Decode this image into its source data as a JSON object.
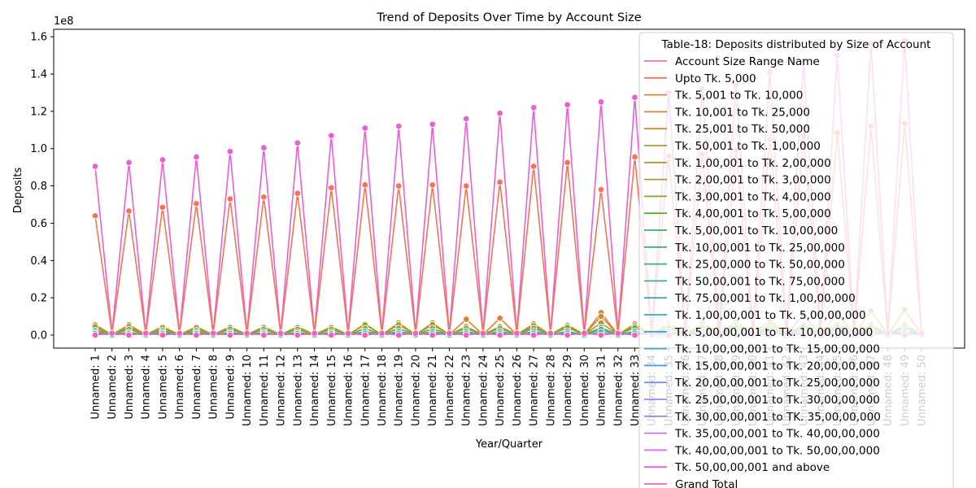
{
  "chart_data": {
    "type": "line",
    "title": "Trend of Deposits Over Time by Account Size",
    "xlabel": "Year/Quarter",
    "ylabel": "Deposits",
    "y_offset_label": "1e8",
    "ylim": [
      -0.07,
      1.64
    ],
    "y_ticks": [
      0.0,
      0.2,
      0.4,
      0.6,
      0.8,
      1.0,
      1.2,
      1.4,
      1.6
    ],
    "y_tick_labels": [
      "0.0",
      "0.2",
      "0.4",
      "0.6",
      "0.8",
      "1.0",
      "1.2",
      "1.4",
      "1.6"
    ],
    "grid": false,
    "legend": {
      "title": "Table-18:  Deposits  distributed by Size of Account",
      "placement": "upper-right",
      "entries": [
        "Account Size Range Name",
        "Upto Tk. 5,000",
        "Tk. 5,001 to Tk. 10,000",
        "Tk. 10,001 to Tk. 25,000",
        "Tk. 25,001 to Tk. 50,000",
        "Tk. 50,001 to Tk. 1,00,000",
        "Tk. 1,00,001 to Tk. 2,00,000",
        "Tk. 2,00,001 to Tk. 3,00,000",
        "Tk. 3,00,001 to Tk. 4,00,000",
        "Tk. 4,00,001 to Tk. 5,00,000",
        "Tk. 5,00,001 to Tk. 10,00,000",
        "Tk. 10,00,001 to Tk. 25,00,000",
        "Tk. 25,00,000 to Tk. 50,00,000",
        "Tk. 50,00,001 to Tk. 75,00,000",
        "Tk. 75,00,001 to Tk. 1,00,00,000",
        "Tk. 1,00,00,001 to Tk. 5,00,00,000",
        "Tk. 5,00,00,001 to Tk. 10,00,00,000",
        "Tk. 10,00,00,001 to Tk. 15,00,00,000",
        "Tk. 15,00,00,001 to Tk. 20,00,00,000",
        "Tk. 20,00,00,001 to Tk. 25,00,00,000",
        "Tk. 25,00,00,001 to Tk. 30,00,00,000",
        "Tk. 30,00,00,001 to TK. 35,00,00,000",
        "Tk. 35,00,00,001 to Tk. 40,00,00,000",
        "Tk. 40,00,00,001 to Tk. 50,00,00,000",
        "Tk. 50,00,00,001 and above",
        "Grand Total"
      ],
      "colors": [
        "#f77189",
        "#f57453",
        "#e4802f",
        "#cf8a31",
        "#c09032",
        "#b19732",
        "#a29c31",
        "#95a031",
        "#81a831",
        "#50b131",
        "#36b25f",
        "#36b082",
        "#37ad9a",
        "#38aaa7",
        "#39a8b2",
        "#3ba5bc",
        "#3da2c8",
        "#3e9ed7",
        "#4599f4",
        "#6e91f4",
        "#8f89f4",
        "#a781f4",
        "#c173f4",
        "#da63f4",
        "#ef5dd6",
        "#f461b8"
      ]
    },
    "categories": [
      "Unnamed: 1",
      "Unnamed: 2",
      "Unnamed: 3",
      "Unnamed: 4",
      "Unnamed: 5",
      "Unnamed: 6",
      "Unnamed: 7",
      "Unnamed: 8",
      "Unnamed: 9",
      "Unnamed: 10",
      "Unnamed: 11",
      "Unnamed: 12",
      "Unnamed: 13",
      "Unnamed: 14",
      "Unnamed: 15",
      "Unnamed: 16",
      "Unnamed: 17",
      "Unnamed: 18",
      "Unnamed: 19",
      "Unnamed: 20",
      "Unnamed: 21",
      "Unnamed: 22",
      "Unnamed: 23",
      "Unnamed: 24",
      "Unnamed: 25",
      "Unnamed: 26",
      "Unnamed: 27",
      "Unnamed: 28",
      "Unnamed: 29",
      "Unnamed: 30",
      "Unnamed: 31",
      "Unnamed: 32",
      "Unnamed: 33",
      "Unnamed: 34",
      "Unnamed: 35",
      "Unnamed: 36",
      "Unnamed: 37",
      "Unnamed: 38",
      "Unnamed: 39",
      "Unnamed: 40",
      "Unnamed: 41",
      "Unnamed: 42",
      "Unnamed: 43",
      "Unnamed: 44",
      "Unnamed: 45",
      "Unnamed: 46",
      "Unnamed: 47",
      "Unnamed: 48",
      "Unnamed: 49",
      "Unnamed: 50"
    ],
    "series": [
      {
        "name": "Tk. 50,00,00,001 and above",
        "color": "#ef5dd6",
        "values": [
          0.905,
          0.01,
          0.925,
          0.01,
          0.94,
          0.01,
          0.955,
          0.01,
          0.985,
          0.01,
          1.005,
          0.01,
          1.03,
          0.01,
          1.07,
          0.01,
          1.11,
          0.01,
          1.12,
          0.01,
          1.13,
          0.01,
          1.16,
          0.01,
          1.19,
          0.01,
          1.22,
          0.01,
          1.235,
          0.01,
          1.25,
          0.01,
          1.275,
          0.01,
          1.3,
          0.01,
          1.32,
          0.01,
          1.34,
          0.01,
          1.41,
          0.01,
          1.47,
          0.01,
          1.5,
          0.01,
          1.56,
          0.01,
          1.58,
          0.01
        ]
      },
      {
        "name": "Upto Tk. 5,000",
        "color": "#f57453",
        "values": [
          0.64,
          0.005,
          0.665,
          0.005,
          0.685,
          0.005,
          0.705,
          0.005,
          0.73,
          0.005,
          0.74,
          0.005,
          0.76,
          0.005,
          0.79,
          0.005,
          0.805,
          0.005,
          0.8,
          0.005,
          0.805,
          0.005,
          0.8,
          0.005,
          0.82,
          0.005,
          0.905,
          0.005,
          0.925,
          0.005,
          0.78,
          0.005,
          0.955,
          0.005,
          0.96,
          0.005,
          0.97,
          0.005,
          0.99,
          0.005,
          1.05,
          0.005,
          1.07,
          0.005,
          1.085,
          0.005,
          1.12,
          0.005,
          1.135,
          0.005
        ]
      },
      {
        "name": "Tk. 5,001 to Tk. 10,000",
        "color": "#e4802f",
        "values": [
          0.035,
          0.002,
          0.035,
          0.002,
          0.03,
          0.002,
          0.03,
          0.002,
          0.03,
          0.002,
          0.03,
          0.002,
          0.03,
          0.002,
          0.03,
          0.002,
          0.035,
          0.002,
          0.035,
          0.002,
          0.035,
          0.002,
          0.085,
          0.002,
          0.09,
          0.002,
          0.04,
          0.002,
          0.04,
          0.002,
          0.12,
          0.002,
          0.04,
          0.002,
          0.04,
          0.002,
          0.04,
          0.002,
          0.04,
          0.002,
          0.04,
          0.002,
          0.04,
          0.002,
          0.04,
          0.002,
          0.04,
          0.002,
          0.04,
          0.002
        ]
      },
      {
        "name": "Tk. 10,001 to Tk. 25,000",
        "color": "#cf8a31",
        "values": [
          0.055,
          0.002,
          0.055,
          0.002,
          0.045,
          0.002,
          0.045,
          0.002,
          0.045,
          0.002,
          0.045,
          0.002,
          0.045,
          0.002,
          0.045,
          0.002,
          0.06,
          0.002,
          0.065,
          0.002,
          0.065,
          0.002,
          0.04,
          0.002,
          0.045,
          0.002,
          0.06,
          0.002,
          0.055,
          0.002,
          0.1,
          0.002,
          0.06,
          0.002,
          0.06,
          0.002,
          0.065,
          0.002,
          0.07,
          0.002,
          0.08,
          0.002,
          0.11,
          0.002,
          0.12,
          0.002,
          0.13,
          0.002,
          0.135,
          0.002
        ]
      },
      {
        "name": "Tk. 50,001 to Tk. 1,00,000",
        "color": "#a29c31",
        "values": [
          0.045,
          0.003,
          0.045,
          0.003,
          0.04,
          0.003,
          0.04,
          0.003,
          0.04,
          0.003,
          0.04,
          0.003,
          0.04,
          0.003,
          0.04,
          0.003,
          0.055,
          0.003,
          0.055,
          0.003,
          0.055,
          0.003,
          0.045,
          0.003,
          0.045,
          0.003,
          0.05,
          0.003,
          0.05,
          0.003,
          0.065,
          0.003,
          0.05,
          0.003,
          0.05,
          0.003,
          0.05,
          0.003,
          0.055,
          0.003,
          0.055,
          0.003,
          0.055,
          0.003,
          0.055,
          0.003,
          0.055,
          0.003,
          0.055,
          0.003
        ]
      },
      {
        "name": "Tk. 4,00,001 to Tk. 5,00,000",
        "color": "#81a831",
        "values": [
          0.025,
          0.002,
          0.03,
          0.002,
          0.025,
          0.002,
          0.025,
          0.002,
          0.03,
          0.002,
          0.03,
          0.002,
          0.03,
          0.002,
          0.03,
          0.002,
          0.035,
          0.002,
          0.035,
          0.002,
          0.035,
          0.002,
          0.035,
          0.002,
          0.035,
          0.002,
          0.035,
          0.002,
          0.04,
          0.002,
          0.04,
          0.002,
          0.04,
          0.002,
          0.04,
          0.002,
          0.04,
          0.002,
          0.04,
          0.002,
          0.04,
          0.002,
          0.045,
          0.002,
          0.045,
          0.002,
          0.045,
          0.002,
          0.045,
          0.002
        ]
      },
      {
        "name": "Tk. 25,00,000 to Tk. 50,00,000",
        "color": "#37ad9a",
        "values": [
          0.015,
          0.001,
          0.015,
          0.001,
          0.015,
          0.001,
          0.015,
          0.001,
          0.015,
          0.001,
          0.015,
          0.001,
          0.015,
          0.001,
          0.015,
          0.001,
          0.02,
          0.001,
          0.02,
          0.001,
          0.02,
          0.001,
          0.02,
          0.001,
          0.02,
          0.001,
          0.02,
          0.001,
          0.02,
          0.001,
          0.03,
          0.001,
          0.02,
          0.001,
          0.02,
          0.001,
          0.02,
          0.001,
          0.02,
          0.001,
          0.025,
          0.001,
          0.025,
          0.001,
          0.025,
          0.001,
          0.025,
          0.001,
          0.025,
          0.001
        ]
      },
      {
        "name": "Tk. 1,00,00,001 to Tk. 5,00,00,000",
        "color": "#3ba5bc",
        "values": [
          0.008,
          0.001,
          0.008,
          0.001,
          0.008,
          0.001,
          0.008,
          0.001,
          0.008,
          0.001,
          0.008,
          0.001,
          0.008,
          0.001,
          0.008,
          0.001,
          0.01,
          0.001,
          0.01,
          0.001,
          0.01,
          0.001,
          0.01,
          0.001,
          0.01,
          0.001,
          0.01,
          0.001,
          0.01,
          0.001,
          0.015,
          0.001,
          0.01,
          0.001,
          0.01,
          0.001,
          0.01,
          0.001,
          0.012,
          0.001,
          0.012,
          0.001,
          0.012,
          0.001,
          0.012,
          0.001,
          0.012,
          0.001,
          0.012,
          0.001
        ]
      },
      {
        "name": "Grand Total",
        "color": "#f461b8",
        "values": [
          0.0,
          0.01,
          0.0,
          0.01,
          0.0,
          0.01,
          0.0,
          0.01,
          0.0,
          0.01,
          0.0,
          0.01,
          0.0,
          0.01,
          0.0,
          0.01,
          0.0,
          0.01,
          0.0,
          0.01,
          0.0,
          0.01,
          0.0,
          0.01,
          0.0,
          0.01,
          0.0,
          0.01,
          0.0,
          0.01,
          0.0,
          0.01,
          0.0,
          0.01,
          0.0,
          0.01,
          0.0,
          0.01,
          0.0,
          0.01,
          0.0,
          0.01,
          0.0,
          0.01,
          0.0,
          0.01,
          0.0,
          0.01,
          0.0,
          0.01
        ]
      }
    ]
  }
}
